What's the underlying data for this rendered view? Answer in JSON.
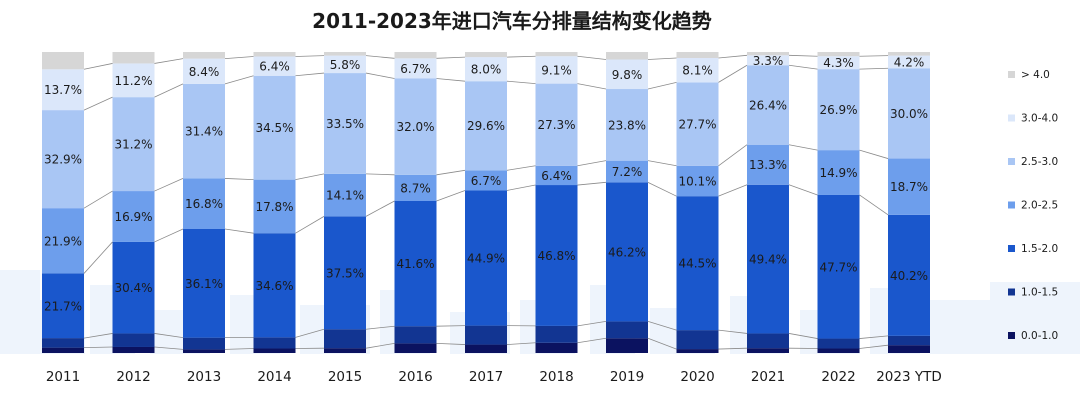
{
  "chart_data": {
    "type": "bar",
    "stacked": true,
    "percent": true,
    "title": "2011-2023年进口汽车分排量结构变化趋势",
    "xlabel": "",
    "ylabel": "",
    "ylim": [
      0,
      100
    ],
    "categories": [
      "2011",
      "2012",
      "2013",
      "2014",
      "2015",
      "2016",
      "2017",
      "2018",
      "2019",
      "2020",
      "2021",
      "2022",
      "2023 YTD"
    ],
    "series": [
      {
        "name": "0.0-1.0",
        "color": "#0b1260",
        "values": [
          1.8,
          2.0,
          1.2,
          1.5,
          1.6,
          3.2,
          2.8,
          3.4,
          4.9,
          1.3,
          1.6,
          1.5,
          2.6
        ],
        "labels": [
          "",
          "",
          "",
          "",
          "",
          "",
          "",
          "",
          "",
          "",
          "",
          "",
          ""
        ]
      },
      {
        "name": "1.0-1.5",
        "color": "#123592",
        "values": [
          3.2,
          4.5,
          3.9,
          3.7,
          6.3,
          5.7,
          6.3,
          5.6,
          5.6,
          6.3,
          4.9,
          3.3,
          3.1
        ],
        "labels": [
          "",
          "",
          "",
          "",
          "",
          "",
          "",
          "",
          "",
          "",
          "",
          "",
          ""
        ]
      },
      {
        "name": "1.5-2.0",
        "color": "#1a57cc",
        "values": [
          21.7,
          30.4,
          36.1,
          34.6,
          37.5,
          41.6,
          44.9,
          46.8,
          46.2,
          44.5,
          49.4,
          47.7,
          40.2
        ],
        "labels": [
          "21.7%",
          "30.4%",
          "36.1%",
          "34.6%",
          "37.5%",
          "41.6%",
          "44.9%",
          "46.8%",
          "46.2%",
          "44.5%",
          "49.4%",
          "47.7%",
          "40.2%"
        ]
      },
      {
        "name": "2.0-2.5",
        "color": "#6d9eec",
        "values": [
          21.9,
          16.9,
          16.8,
          17.8,
          14.1,
          8.7,
          6.7,
          6.4,
          7.2,
          10.1,
          13.3,
          14.9,
          18.7
        ],
        "labels": [
          "21.9%",
          "16.9%",
          "16.8%",
          "17.8%",
          "14.1%",
          "8.7%",
          "6.7%",
          "6.4%",
          "7.2%",
          "10.1%",
          "13.3%",
          "14.9%",
          "18.7%"
        ]
      },
      {
        "name": "2.5-3.0",
        "color": "#a9c6f4",
        "values": [
          32.9,
          31.2,
          31.4,
          34.5,
          33.5,
          32.0,
          29.6,
          27.3,
          23.8,
          27.7,
          26.4,
          26.9,
          30.0
        ],
        "labels": [
          "32.9%",
          "31.2%",
          "31.4%",
          "34.5%",
          "33.5%",
          "32.0%",
          "29.6%",
          "27.3%",
          "23.8%",
          "27.7%",
          "26.4%",
          "26.9%",
          "30.0%"
        ]
      },
      {
        "name": "3.0-4.0",
        "color": "#dbe7fa",
        "values": [
          13.7,
          11.2,
          8.4,
          6.4,
          5.8,
          6.7,
          8.0,
          9.1,
          9.8,
          8.1,
          3.3,
          4.3,
          4.2
        ],
        "labels": [
          "13.7%",
          "11.2%",
          "8.4%",
          "6.4%",
          "5.8%",
          "6.7%",
          "8.0%",
          "9.1%",
          "9.8%",
          "8.1%",
          "3.3%",
          "4.3%",
          "4.2%"
        ]
      },
      {
        "name": "> 4.0",
        "color": "#d6d6d6",
        "values": [
          5.8,
          3.8,
          2.2,
          1.5,
          1.2,
          2.1,
          1.7,
          1.4,
          2.5,
          2.0,
          1.1,
          1.4,
          1.2
        ],
        "labels": [
          "",
          "",
          "",
          "",
          "",
          "",
          "",
          "",
          "",
          "",
          "",
          "",
          ""
        ]
      }
    ],
    "legend_position": "right",
    "legend_order": [
      "> 4.0",
      "3.0-4.0",
      "2.5-3.0",
      "2.0-2.5",
      "1.5-2.0",
      "1.0-1.5",
      "0.0-1.0"
    ],
    "connector_lines": true
  }
}
